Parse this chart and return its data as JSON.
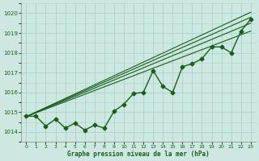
{
  "title": "Graphe pression niveau de la mer (hPa)",
  "background_color": "#cce8e0",
  "grid_color": "#aad4cc",
  "line_color": "#1a5c1a",
  "x_values": [
    0,
    1,
    2,
    3,
    4,
    5,
    6,
    7,
    8,
    9,
    10,
    11,
    12,
    13,
    14,
    15,
    16,
    17,
    18,
    19,
    20,
    21,
    22,
    23
  ],
  "y_main": [
    1014.8,
    1014.8,
    1014.3,
    1014.65,
    1014.2,
    1014.45,
    1014.1,
    1014.35,
    1014.2,
    1015.05,
    1015.4,
    1015.95,
    1016.0,
    1017.1,
    1016.3,
    1016.0,
    1017.3,
    1017.45,
    1017.7,
    1018.3,
    1018.3,
    1018.0,
    1019.1,
    1019.7
  ],
  "ylim": [
    1013.5,
    1020.5
  ],
  "xlim": [
    -0.5,
    23.5
  ],
  "yticks": [
    1014,
    1015,
    1016,
    1017,
    1018,
    1019,
    1020
  ],
  "xticks": [
    0,
    1,
    2,
    3,
    4,
    5,
    6,
    7,
    8,
    9,
    10,
    11,
    12,
    13,
    14,
    15,
    16,
    17,
    18,
    19,
    20,
    21,
    22,
    23
  ],
  "trend_lines": [
    {
      "x0": 0,
      "y0": 1014.78,
      "x1": 23,
      "y1": 1019.5
    },
    {
      "x0": 0,
      "y0": 1014.78,
      "x1": 23,
      "y1": 1019.8
    },
    {
      "x0": 0,
      "y0": 1014.78,
      "x1": 23,
      "y1": 1020.05
    },
    {
      "x0": 0,
      "y0": 1014.78,
      "x1": 23,
      "y1": 1019.1
    }
  ],
  "marker": "D",
  "marker_size": 2.5,
  "line_width": 1.0
}
